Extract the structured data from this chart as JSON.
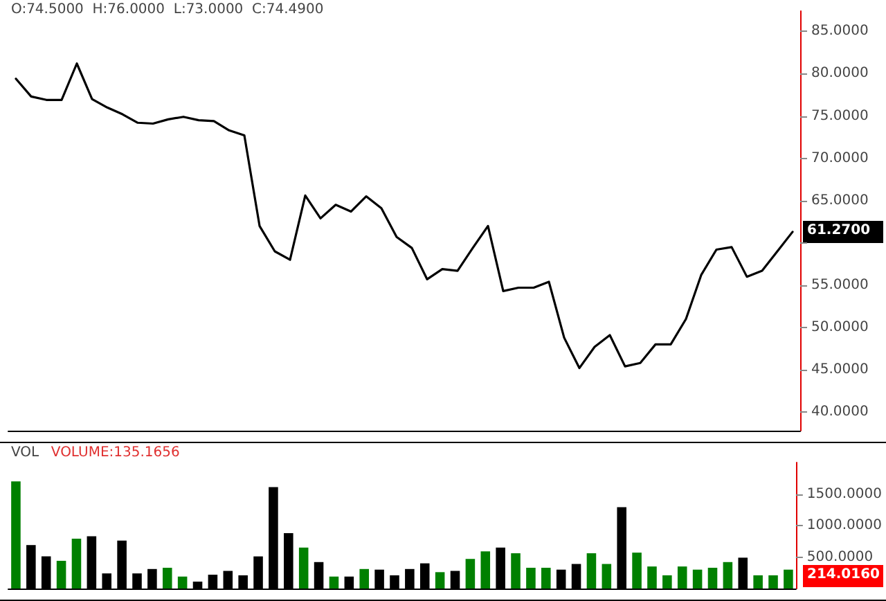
{
  "chart_data": [
    {
      "type": "line",
      "categories": [
        null,
        null,
        null,
        null,
        null,
        null,
        null,
        null,
        null,
        null,
        null,
        null,
        null,
        null,
        null,
        null,
        null,
        null,
        null,
        null,
        null,
        null,
        null,
        null,
        null,
        null,
        null,
        null,
        null,
        null,
        null,
        null,
        null,
        null,
        null,
        null,
        null,
        null,
        null,
        null,
        null,
        null,
        null,
        null,
        null,
        null,
        null,
        null,
        null,
        null,
        null,
        null
      ],
      "series": [
        {
          "color": "#000000",
          "values": [
            79.4,
            77.3,
            76.9,
            76.9,
            81.2,
            77.0,
            76.0,
            75.2,
            74.2,
            74.1,
            74.6,
            74.9,
            74.5,
            74.4,
            73.3,
            72.7,
            62.0,
            59.0,
            58.0,
            65.6,
            62.9,
            64.5,
            63.7,
            65.5,
            64.1,
            60.7,
            59.4,
            55.7,
            56.9,
            56.7,
            59.4,
            62.0,
            54.3,
            54.7,
            54.7,
            55.4,
            48.8,
            45.2,
            47.7,
            49.1,
            45.4,
            45.8,
            48.0,
            48.0,
            51.0,
            56.2,
            59.2,
            59.5,
            56.0,
            56.7,
            59.0,
            61.3
          ]
        }
      ],
      "ylim": [
        37.8,
        87.4
      ],
      "yticks": [
        {
          "value": 40,
          "label": "40.0000"
        },
        {
          "value": 45,
          "label": "45.0000"
        },
        {
          "value": 50,
          "label": "50.0000"
        },
        {
          "value": 55,
          "label": "55.0000"
        },
        {
          "value": 60,
          "label": null
        },
        {
          "value": 65,
          "label": "65.0000"
        },
        {
          "value": 70,
          "label": "70.0000"
        },
        {
          "value": 75,
          "label": "75.0000"
        },
        {
          "value": 80,
          "label": "80.0000"
        },
        {
          "value": 85,
          "label": "85.0000"
        }
      ],
      "marker": "none",
      "grid": false,
      "annotations": [
        "O:74.5000  H:76.0000  L:73.0000  C:74.4900",
        "61.2700"
      ]
    },
    {
      "type": "bar",
      "categories": [
        null,
        null,
        null,
        null,
        null,
        null,
        null,
        null,
        null,
        null,
        null,
        null,
        null,
        null,
        null,
        null,
        null,
        null,
        null,
        null,
        null,
        null,
        null,
        null,
        null,
        null,
        null,
        null,
        null,
        null,
        null,
        null,
        null,
        null,
        null,
        null,
        null,
        null,
        null,
        null,
        null,
        null,
        null,
        null,
        null,
        null,
        null,
        null,
        null,
        null,
        null,
        null
      ],
      "values": [
        1700,
        690,
        510,
        440,
        790,
        830,
        240,
        760,
        240,
        310,
        330,
        190,
        110,
        220,
        280,
        210,
        510,
        1610,
        880,
        650,
        420,
        190,
        190,
        310,
        300,
        210,
        310,
        400,
        260,
        280,
        470,
        590,
        650,
        560,
        330,
        330,
        300,
        390,
        560,
        390,
        1290,
        570,
        350,
        210,
        350,
        300,
        330,
        420,
        490,
        210,
        210,
        300
      ],
      "colors": [
        "#008000",
        "#000000",
        "#000000",
        "#008000",
        "#008000",
        "#000000",
        "#000000",
        "#000000",
        "#000000",
        "#000000",
        "#008000",
        "#008000",
        "#000000",
        "#000000",
        "#000000",
        "#000000",
        "#000000",
        "#000000",
        "#000000",
        "#008000",
        "#000000",
        "#008000",
        "#000000",
        "#008000",
        "#000000",
        "#000000",
        "#000000",
        "#000000",
        "#008000",
        "#000000",
        "#008000",
        "#008000",
        "#000000",
        "#008000",
        "#008000",
        "#008000",
        "#000000",
        "#000000",
        "#008000",
        "#008000",
        "#000000",
        "#008000",
        "#008000",
        "#008000",
        "#008000",
        "#008000",
        "#008000",
        "#008000",
        "#000000",
        "#008000",
        "#008000",
        "#008000"
      ],
      "ylim": [
        0,
        2000
      ],
      "yticks": [
        {
          "value": 500,
          "label": "500.0000"
        },
        {
          "value": 1000,
          "label": "1000.0000"
        },
        {
          "value": 1500,
          "label": "1500.0000"
        }
      ],
      "grid": false,
      "annotations": [
        "VOL",
        "VOLUME:135.1656",
        "214.0160"
      ]
    }
  ]
}
